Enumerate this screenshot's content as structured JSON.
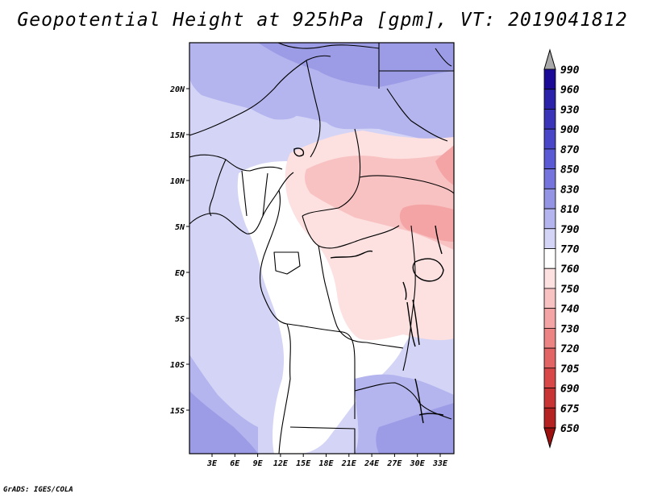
{
  "title": "Geopotential Height at 925hPa [gpm], VT: 2019041812",
  "credit": "GrADS: IGES/COLA",
  "map": {
    "lat_labels": [
      "20N",
      "15N",
      "10N",
      "5N",
      "EQ",
      "5S",
      "10S",
      "15S"
    ],
    "lon_labels": [
      "3E",
      "6E",
      "9E",
      "12E",
      "15E",
      "18E",
      "21E",
      "24E",
      "27E",
      "30E",
      "33E"
    ]
  },
  "colorbar": {
    "labels": [
      "990",
      "960",
      "930",
      "900",
      "870",
      "850",
      "830",
      "810",
      "790",
      "770",
      "760",
      "750",
      "740",
      "730",
      "720",
      "705",
      "690",
      "675",
      "650"
    ],
    "colors": [
      "#a9a9a9",
      "#1a0a96",
      "#2a22a8",
      "#3a34b8",
      "#4a46c8",
      "#5a5ad4",
      "#7474dc",
      "#9494e4",
      "#b4b4ee",
      "#d4d4f6",
      "#ffffff",
      "#fde0e0",
      "#f9c2c2",
      "#f4a4a4",
      "#ec8484",
      "#e26464",
      "#d84848",
      "#c83434",
      "#b42222",
      "#9c1010"
    ]
  },
  "field_colors": {
    "purple_dark": "#9c9ce6",
    "purple_mid": "#b4b4ee",
    "purple_light": "#d4d4f6",
    "white": "#ffffff",
    "pink_light": "#fde0e0",
    "pink_mid": "#f9c2c2",
    "pink_dark": "#f4a4a4",
    "border": "#000000"
  }
}
